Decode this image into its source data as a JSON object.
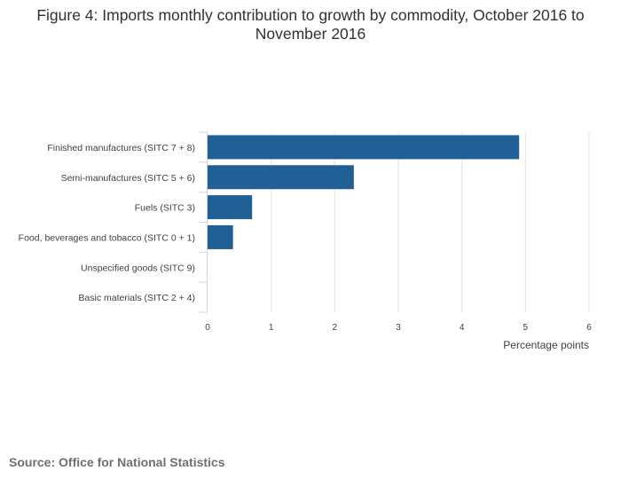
{
  "title": "Figure 4: Imports monthly contribution to growth by commodity, October 2016 to November 2016",
  "source": "Source: Office for National Statistics",
  "colors": {
    "bar": "#206095",
    "grid": "#e3e3e3",
    "axis": "#ccd6eb"
  },
  "chart_data": {
    "type": "bar",
    "orientation": "horizontal",
    "categories": [
      "Finished manufactures (SITC 7 + 8)",
      "Semi-manufactures (SITC 5 + 6)",
      "Fuels (SITC 3)",
      "Food, beverages and tobacco (SITC 0 + 1)",
      "Unspecified goods (SITC 9)",
      "Basic materials (SITC 2 + 4)"
    ],
    "values": [
      4.9,
      2.3,
      0.7,
      0.4,
      0,
      0
    ],
    "xlabel": "Percentage points",
    "xlim": [
      0,
      6
    ],
    "xticks": [
      0,
      1,
      2,
      3,
      4,
      5,
      6
    ],
    "grid": true,
    "legend": "none"
  }
}
